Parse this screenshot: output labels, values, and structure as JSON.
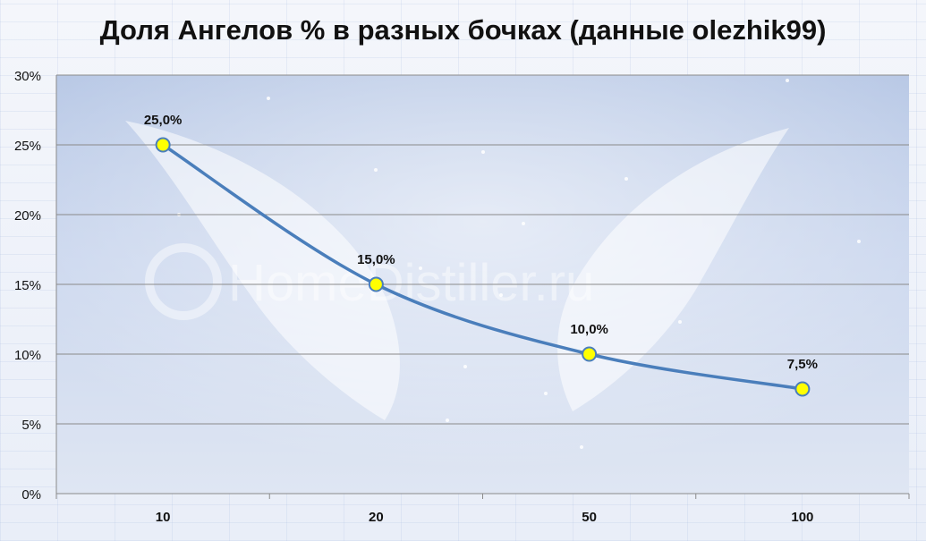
{
  "chart_data": {
    "type": "line",
    "title": "Доля Ангелов % в разных бочках (данные olezhik99)",
    "categories": [
      "10",
      "20",
      "50",
      "100"
    ],
    "values": [
      25.0,
      15.0,
      10.0,
      7.5
    ],
    "data_labels": [
      "25,0%",
      "15,0%",
      "10,0%",
      "7,5%"
    ],
    "y_ticks": [
      "0%",
      "5%",
      "10%",
      "15%",
      "20%",
      "25%",
      "30%"
    ],
    "ylim": [
      0,
      30
    ],
    "xlabel": "",
    "ylabel": "",
    "grid": true,
    "legend": "none",
    "watermark": "HomeDistiller.ru",
    "colors": {
      "line": "#4a7ebb",
      "marker_fill": "#ffff00",
      "marker_stroke": "#4a7ebb",
      "grid": "#8a8a8a",
      "plot_bg_top": "#b9c9e6",
      "plot_bg_bottom": "#dfe6f3"
    }
  }
}
